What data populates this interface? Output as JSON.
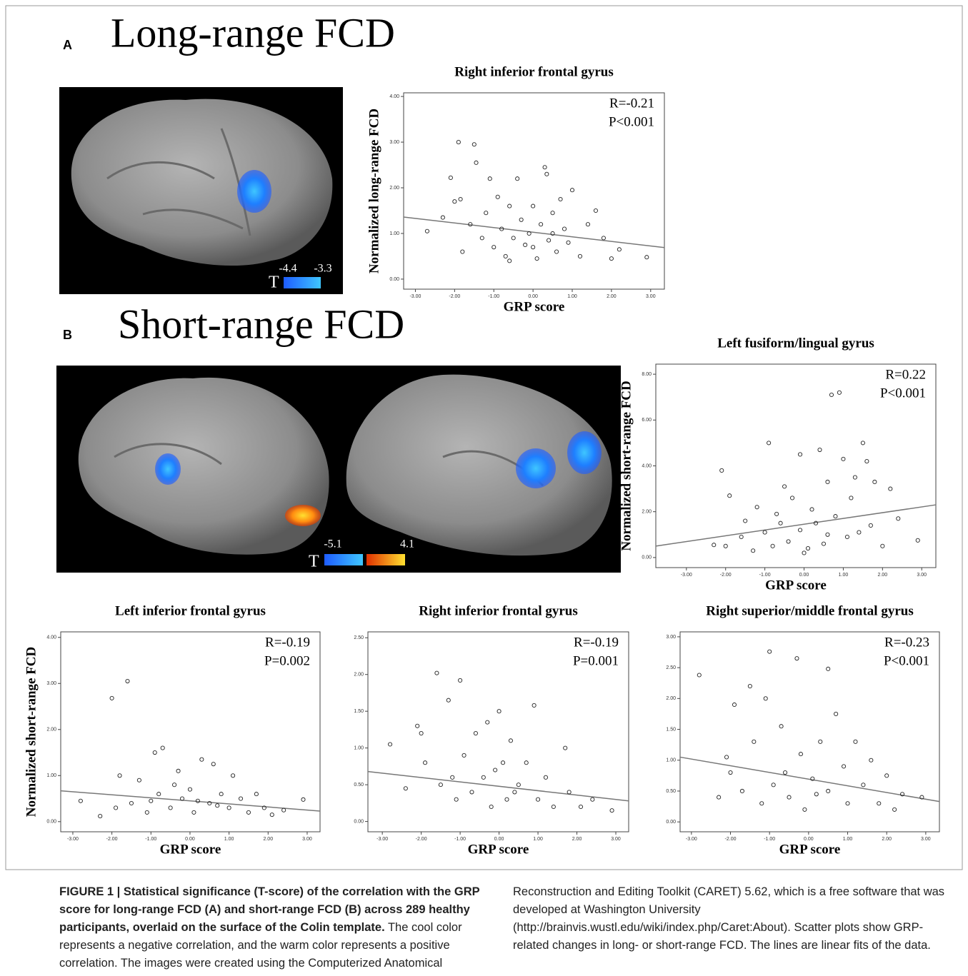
{
  "panels": {
    "A": {
      "label": "A",
      "heading": "Long-range FCD",
      "colorbar": {
        "title": "T",
        "min": -4.4,
        "max": -3.3
      }
    },
    "B": {
      "label": "B",
      "heading": "Short-range FCD",
      "colorbar": {
        "title": "T",
        "min": -5.1,
        "max": 4.1
      }
    }
  },
  "chart_data": [
    {
      "type": "scatter",
      "title": "Right inferior frontal gyrus",
      "x_label": "GRP score",
      "y_label": "Normalized long-range FCD",
      "annotations": [
        "R=-0.21",
        "P<0.001"
      ],
      "xlim": [
        -3.3,
        3.35
      ],
      "ylim": [
        -0.22,
        4.08
      ],
      "xticks": [
        {
          "value": -3,
          "label": "-3.00"
        },
        {
          "value": -2,
          "label": "-2.00"
        },
        {
          "value": -1,
          "label": "-1.00"
        },
        {
          "value": 0,
          "label": "0.00"
        },
        {
          "value": 1,
          "label": "1.00"
        },
        {
          "value": 2,
          "label": "2.00"
        },
        {
          "value": 3,
          "label": "3.00"
        }
      ],
      "yticks": [
        {
          "value": 0,
          "label": "0.00"
        },
        {
          "value": 1,
          "label": "1.00"
        },
        {
          "value": 2,
          "label": "2.00"
        },
        {
          "value": 3,
          "label": "3.00"
        },
        {
          "value": 4,
          "label": "4.00"
        }
      ],
      "x": [
        -2.7,
        -2.3,
        -2.1,
        -1.9,
        -1.85,
        -2.0,
        -1.8,
        -1.6,
        -1.5,
        -1.45,
        -1.3,
        -1.2,
        -1.1,
        -1.0,
        -0.9,
        -0.8,
        -0.7,
        -0.6,
        -0.5,
        -0.4,
        -0.3,
        -0.2,
        -0.1,
        0.0,
        0.1,
        0.2,
        0.3,
        0.35,
        0.4,
        0.5,
        0.6,
        0.7,
        0.8,
        0.9,
        1.0,
        1.2,
        1.4,
        1.6,
        1.8,
        2.0,
        2.2,
        2.9,
        -0.6,
        0.0,
        0.5
      ],
      "y": [
        1.05,
        1.35,
        2.22,
        3.0,
        1.75,
        1.7,
        0.6,
        1.2,
        2.95,
        2.55,
        0.9,
        1.45,
        2.2,
        0.7,
        1.8,
        1.1,
        0.5,
        1.6,
        0.9,
        2.2,
        1.3,
        0.75,
        1.0,
        1.6,
        0.45,
        1.2,
        2.45,
        2.3,
        0.85,
        1.45,
        0.6,
        1.75,
        1.1,
        0.8,
        1.95,
        0.5,
        1.2,
        1.5,
        0.9,
        0.45,
        0.65,
        0.48,
        0.4,
        0.7,
        1.0
      ],
      "fit": {
        "x": [
          -3.3,
          3.35
        ],
        "y": [
          1.36,
          0.69
        ]
      }
    },
    {
      "type": "scatter",
      "title": "Left fusiform/lingual gyrus",
      "x_label": "GRP score",
      "y_label": "Normalized short-range FCD",
      "annotations": [
        "R=0.22",
        "P<0.001"
      ],
      "xlim": [
        -3.78,
        3.36
      ],
      "ylim": [
        -0.44,
        8.44
      ],
      "xticks": [
        {
          "value": -3,
          "label": "-3.00"
        },
        {
          "value": -2,
          "label": "-2.00"
        },
        {
          "value": -1,
          "label": "-1.00"
        },
        {
          "value": 0,
          "label": "0.00"
        },
        {
          "value": 1,
          "label": "1.00"
        },
        {
          "value": 2,
          "label": "2.00"
        },
        {
          "value": 3,
          "label": "3.00"
        }
      ],
      "yticks": [
        {
          "value": 0,
          "label": "0.00"
        },
        {
          "value": 2,
          "label": "2.00"
        },
        {
          "value": 4,
          "label": "4.00"
        },
        {
          "value": 6,
          "label": "6.00"
        },
        {
          "value": 8,
          "label": "8.00"
        }
      ],
      "x": [
        -2.3,
        -2.1,
        -2.0,
        -1.9,
        -1.6,
        -1.5,
        -1.3,
        -1.2,
        -1.0,
        -0.9,
        -0.8,
        -0.7,
        -0.5,
        -0.4,
        -0.3,
        -0.1,
        -0.1,
        0.1,
        0.2,
        0.3,
        0.4,
        0.5,
        0.6,
        0.7,
        0.8,
        0.9,
        1.0,
        1.1,
        1.2,
        1.3,
        1.4,
        1.5,
        1.6,
        1.7,
        1.8,
        2.0,
        2.2,
        2.4,
        2.9,
        -0.6,
        0.0,
        0.6
      ],
      "y": [
        0.55,
        3.8,
        0.5,
        2.7,
        0.9,
        1.6,
        0.3,
        2.2,
        1.1,
        5.0,
        0.5,
        1.9,
        3.1,
        0.7,
        2.6,
        1.2,
        4.5,
        0.4,
        2.1,
        1.5,
        4.7,
        0.6,
        3.3,
        7.1,
        1.8,
        7.2,
        4.3,
        0.9,
        2.6,
        3.5,
        1.1,
        5.0,
        4.2,
        1.4,
        3.3,
        0.5,
        3.0,
        1.7,
        0.75,
        1.5,
        0.2,
        1.0
      ],
      "fit": {
        "x": [
          -3.78,
          3.36
        ],
        "y": [
          0.5,
          2.3
        ]
      }
    },
    {
      "type": "scatter",
      "title": "Left inferior frontal gyrus",
      "x_label": "GRP score",
      "y_label": "Normalized short-range FCD",
      "annotations": [
        "R=-0.19",
        "P=0.002"
      ],
      "xlim": [
        -3.31,
        3.33
      ],
      "ylim": [
        -0.22,
        4.12
      ],
      "xticks": [
        {
          "value": -3,
          "label": "-3.00"
        },
        {
          "value": -2,
          "label": "-2.00"
        },
        {
          "value": -1,
          "label": "-1.00"
        },
        {
          "value": 0,
          "label": "0.00"
        },
        {
          "value": 1,
          "label": "1.00"
        },
        {
          "value": 2,
          "label": "2.00"
        },
        {
          "value": 3,
          "label": "3.00"
        }
      ],
      "yticks": [
        {
          "value": 0,
          "label": "0.00"
        },
        {
          "value": 1,
          "label": "1.00"
        },
        {
          "value": 2,
          "label": "2.00"
        },
        {
          "value": 3,
          "label": "3.00"
        },
        {
          "value": 4,
          "label": "4.00"
        }
      ],
      "x": [
        -2.8,
        -2.3,
        -2.0,
        -1.9,
        -1.8,
        -1.6,
        -1.5,
        -1.3,
        -1.1,
        -0.9,
        -0.8,
        -0.7,
        -0.5,
        -0.3,
        -0.2,
        0.0,
        0.1,
        0.3,
        0.5,
        0.6,
        0.8,
        1.0,
        1.1,
        1.3,
        1.5,
        1.7,
        1.9,
        2.1,
        2.4,
        2.9,
        -1.0,
        0.2,
        0.7,
        -0.4
      ],
      "y": [
        0.45,
        0.12,
        2.68,
        0.3,
        1.0,
        3.05,
        0.4,
        0.9,
        0.2,
        1.5,
        0.6,
        1.6,
        0.3,
        1.1,
        0.5,
        0.7,
        0.2,
        1.35,
        0.4,
        1.25,
        0.6,
        0.3,
        1.0,
        0.5,
        0.2,
        0.6,
        0.3,
        0.15,
        0.25,
        0.48,
        0.45,
        0.45,
        0.35,
        0.8
      ],
      "fit": {
        "x": [
          -3.31,
          3.33
        ],
        "y": [
          0.67,
          0.23
        ]
      }
    },
    {
      "type": "scatter",
      "title": "Right inferior frontal gyrus",
      "x_label": "GRP score",
      "annotations": [
        "R=-0.19",
        "P=0.001"
      ],
      "xlim": [
        -3.37,
        3.33
      ],
      "ylim": [
        -0.14,
        2.58
      ],
      "xticks": [
        {
          "value": -3,
          "label": "-3.00"
        },
        {
          "value": -2,
          "label": "-2.00"
        },
        {
          "value": -1,
          "label": "-1.00"
        },
        {
          "value": 0,
          "label": "0.00"
        },
        {
          "value": 1,
          "label": "1.00"
        },
        {
          "value": 2,
          "label": "2.00"
        },
        {
          "value": 3,
          "label": "3.00"
        }
      ],
      "yticks": [
        {
          "value": 0,
          "label": "0.00"
        },
        {
          "value": 0.5,
          "label": "0.50"
        },
        {
          "value": 1,
          "label": "1.00"
        },
        {
          "value": 1.5,
          "label": "1.50"
        },
        {
          "value": 2,
          "label": "2.00"
        },
        {
          "value": 2.5,
          "label": "2.50"
        }
      ],
      "x": [
        -2.8,
        -2.4,
        -2.1,
        -2.0,
        -1.9,
        -1.6,
        -1.5,
        -1.3,
        -1.1,
        -1.0,
        -0.9,
        -0.7,
        -0.6,
        -0.4,
        -0.3,
        -0.2,
        0.0,
        0.1,
        0.2,
        0.3,
        0.5,
        0.7,
        0.9,
        1.0,
        1.2,
        1.4,
        1.7,
        1.8,
        2.1,
        2.4,
        2.9,
        -1.2,
        0.4,
        -0.1
      ],
      "y": [
        1.05,
        0.45,
        1.3,
        1.2,
        0.8,
        2.02,
        0.5,
        1.65,
        0.3,
        1.92,
        0.9,
        0.4,
        1.2,
        0.6,
        1.35,
        0.2,
        1.5,
        0.8,
        0.3,
        1.1,
        0.5,
        0.8,
        1.58,
        0.3,
        0.6,
        0.2,
        1.0,
        0.4,
        0.2,
        0.3,
        0.15,
        0.6,
        0.4,
        0.7
      ],
      "fit": {
        "x": [
          -3.37,
          3.33
        ],
        "y": [
          0.68,
          0.28
        ]
      }
    },
    {
      "type": "scatter",
      "title": "Right superior/middle  frontal gyrus",
      "x_label": "GRP score",
      "annotations": [
        "R=-0.23",
        "P<0.001"
      ],
      "xlim": [
        -3.29,
        3.35
      ],
      "ylim": [
        -0.16,
        3.08
      ],
      "xticks": [
        {
          "value": -3,
          "label": "-3.00"
        },
        {
          "value": -2,
          "label": "-2.00"
        },
        {
          "value": -1,
          "label": "-1.00"
        },
        {
          "value": 0,
          "label": "0.00"
        },
        {
          "value": 1,
          "label": "1.00"
        },
        {
          "value": 2,
          "label": "2.00"
        },
        {
          "value": 3,
          "label": "3.00"
        }
      ],
      "yticks": [
        {
          "value": 0,
          "label": "0.00"
        },
        {
          "value": 0.5,
          "label": "0.50"
        },
        {
          "value": 1,
          "label": "1.00"
        },
        {
          "value": 1.5,
          "label": "1.50"
        },
        {
          "value": 2,
          "label": "2.00"
        },
        {
          "value": 2.5,
          "label": "2.50"
        },
        {
          "value": 3,
          "label": "3.00"
        }
      ],
      "x": [
        -2.8,
        -2.3,
        -2.1,
        -2.0,
        -1.9,
        -1.7,
        -1.5,
        -1.4,
        -1.2,
        -1.1,
        -1.0,
        -0.9,
        -0.7,
        -0.5,
        -0.3,
        -0.2,
        -0.1,
        0.1,
        0.3,
        0.5,
        0.5,
        0.7,
        0.9,
        1.0,
        1.2,
        1.4,
        1.6,
        1.8,
        2.0,
        2.2,
        2.4,
        2.9,
        -0.6,
        0.2
      ],
      "y": [
        2.38,
        0.4,
        1.05,
        0.8,
        1.9,
        0.5,
        2.2,
        1.3,
        0.3,
        2.0,
        2.76,
        0.6,
        1.55,
        0.4,
        2.65,
        1.1,
        0.2,
        0.7,
        1.3,
        2.48,
        0.5,
        1.75,
        0.9,
        0.3,
        1.3,
        0.6,
        1.0,
        0.3,
        0.75,
        0.2,
        0.45,
        0.4,
        0.8,
        0.45
      ],
      "fit": {
        "x": [
          -3.29,
          3.35
        ],
        "y": [
          1.05,
          0.33
        ]
      }
    }
  ],
  "caption": {
    "bold": "FIGURE 1 | Statistical significance (T-score) of the correlation with the GRP score for long-range FCD (A) and short-range FCD (B) across 289 healthy participants, overlaid on the surface of the Colin template.",
    "text": "The cool color represents a negative correlation, and the warm color represents a positive correlation. The images were created using the Computerized Anatomical Reconstruction and Editing Toolkit (CARET) 5.62, which is a free software that was developed at Washington University (http://brainvis.wustl.edu/wiki/index.php/Caret:About). Scatter plots show GRP-related changes in long- or short-range FCD. The lines are linear fits of the data."
  }
}
